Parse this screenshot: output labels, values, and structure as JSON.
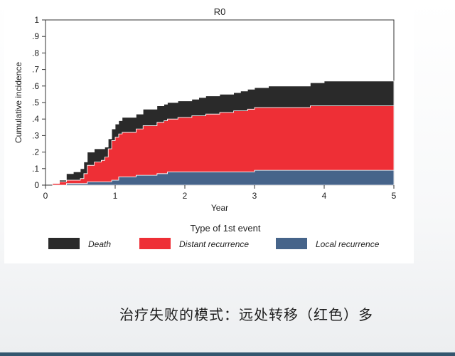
{
  "chart_data": {
    "type": "area",
    "stacked": true,
    "step": true,
    "title": "R0",
    "xlabel": "Year",
    "ylabel": "Cumulative incidence",
    "xlim": [
      0,
      5
    ],
    "ylim": [
      0,
      1
    ],
    "x_ticks": [
      0,
      1,
      2,
      3,
      4,
      5
    ],
    "y_ticks": [
      0,
      0.1,
      0.2,
      0.3,
      0.4,
      0.5,
      0.6,
      0.7,
      0.8,
      0.9,
      1
    ],
    "y_tick_labels": [
      "0",
      ".1",
      ".2",
      ".3",
      ".4",
      ".5",
      ".6",
      ".7",
      ".8",
      ".9",
      "1"
    ],
    "grid": false,
    "legend": {
      "title": "Type of 1st event",
      "position": "bottom"
    },
    "series": [
      {
        "name": "Local recurrence",
        "color": "#46648a",
        "x": [
          0.1,
          0.3,
          0.6,
          0.95,
          1.05,
          1.3,
          1.6,
          1.75,
          2.2,
          2.9,
          3.0,
          3.5,
          4.0,
          5.0
        ],
        "y": [
          0.0,
          0.01,
          0.02,
          0.03,
          0.05,
          0.06,
          0.07,
          0.08,
          0.08,
          0.08,
          0.09,
          0.09,
          0.09,
          0.09
        ]
      },
      {
        "name": "Distant recurrence",
        "color": "#ee2f36",
        "x": [
          0.1,
          0.2,
          0.3,
          0.5,
          0.55,
          0.6,
          0.7,
          0.8,
          0.85,
          0.9,
          0.95,
          1.0,
          1.1,
          1.2,
          1.3,
          1.4,
          1.5,
          1.6,
          1.7,
          1.8,
          1.9,
          2.0,
          2.1,
          2.2,
          2.3,
          2.4,
          2.5,
          2.6,
          2.7,
          2.8,
          2.9,
          3.0,
          3.2,
          3.5,
          3.7,
          3.8,
          4.0,
          4.5,
          5.0
        ],
        "y": [
          0.01,
          0.02,
          0.02,
          0.03,
          0.06,
          0.1,
          0.12,
          0.13,
          0.15,
          0.2,
          0.24,
          0.26,
          0.27,
          0.27,
          0.28,
          0.3,
          0.3,
          0.31,
          0.32,
          0.32,
          0.33,
          0.33,
          0.34,
          0.34,
          0.35,
          0.35,
          0.36,
          0.36,
          0.37,
          0.37,
          0.38,
          0.38,
          0.38,
          0.38,
          0.38,
          0.39,
          0.39,
          0.39,
          0.39
        ]
      },
      {
        "name": "Death",
        "color": "#2a2a2a",
        "x": [
          0.1,
          0.2,
          0.3,
          0.4,
          0.5,
          0.55,
          0.6,
          0.7,
          0.8,
          0.85,
          0.9,
          0.95,
          1.0,
          1.1,
          1.2,
          1.3,
          1.4,
          1.5,
          1.6,
          1.7,
          1.8,
          2.0,
          2.2,
          2.4,
          2.6,
          2.8,
          3.0,
          3.2,
          3.5,
          3.7,
          3.8,
          4.0,
          4.5,
          5.0
        ],
        "y": [
          0.0,
          0.01,
          0.04,
          0.05,
          0.06,
          0.07,
          0.08,
          0.08,
          0.07,
          0.06,
          0.06,
          0.07,
          0.08,
          0.09,
          0.09,
          0.09,
          0.1,
          0.1,
          0.1,
          0.1,
          0.1,
          0.1,
          0.11,
          0.11,
          0.11,
          0.12,
          0.12,
          0.13,
          0.13,
          0.13,
          0.14,
          0.15,
          0.15,
          0.15
        ]
      }
    ],
    "legend_order": [
      "Death",
      "Distant recurrence",
      "Local recurrence"
    ]
  },
  "caption": "治疗失败的模式：远处转移（红色）多"
}
